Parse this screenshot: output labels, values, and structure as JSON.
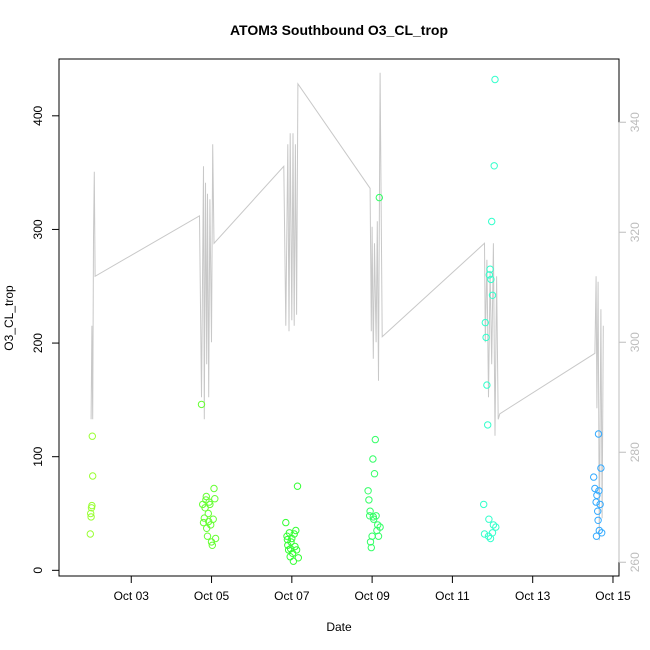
{
  "chart_data": {
    "type": "scatter",
    "title": "ATOM3 Southbound O3_CL_trop",
    "xlabel": "Date",
    "ylabel": "O3_CL_trop",
    "xlim": [
      1.2,
      15.15
    ],
    "ylim": [
      -5,
      450
    ],
    "x_ticks": [
      {
        "value": 3,
        "label": "Oct 03"
      },
      {
        "value": 5,
        "label": "Oct 05"
      },
      {
        "value": 7,
        "label": "Oct 07"
      },
      {
        "value": 9,
        "label": "Oct 09"
      },
      {
        "value": 11,
        "label": "Oct 11"
      },
      {
        "value": 13,
        "label": "Oct 13"
      },
      {
        "value": 15,
        "label": "Oct 15"
      }
    ],
    "y_ticks": [
      0,
      100,
      200,
      300,
      400
    ],
    "secondary_axis": {
      "ylim": [
        257.5,
        351.5
      ],
      "ticks": [
        260,
        280,
        300,
        320,
        340
      ],
      "color": "#bdbdbd"
    },
    "background_line_color": "#c8c8c8",
    "background_line": [
      [
        2.0,
        286
      ],
      [
        2.02,
        303
      ],
      [
        2.04,
        286
      ],
      [
        2.06,
        319
      ],
      [
        2.08,
        331
      ],
      [
        2.1,
        312
      ],
      [
        4.7,
        323
      ],
      [
        4.75,
        290
      ],
      [
        4.8,
        332
      ],
      [
        4.82,
        286
      ],
      [
        4.85,
        329
      ],
      [
        4.88,
        296
      ],
      [
        4.9,
        327
      ],
      [
        4.93,
        290
      ],
      [
        4.96,
        326
      ],
      [
        5.0,
        300
      ],
      [
        5.03,
        336
      ],
      [
        5.06,
        318
      ],
      [
        6.8,
        332
      ],
      [
        6.85,
        303
      ],
      [
        6.9,
        336
      ],
      [
        6.93,
        302
      ],
      [
        6.96,
        338
      ],
      [
        7.0,
        304
      ],
      [
        7.03,
        338
      ],
      [
        7.06,
        303
      ],
      [
        7.09,
        336
      ],
      [
        7.12,
        305
      ],
      [
        7.15,
        347
      ],
      [
        8.95,
        328
      ],
      [
        8.98,
        302
      ],
      [
        9.0,
        321
      ],
      [
        9.03,
        297
      ],
      [
        9.06,
        318
      ],
      [
        9.1,
        300
      ],
      [
        9.13,
        322
      ],
      [
        9.16,
        293
      ],
      [
        9.2,
        349
      ],
      [
        9.25,
        301
      ],
      [
        11.8,
        318
      ],
      [
        11.82,
        300
      ],
      [
        11.86,
        315
      ],
      [
        11.9,
        290
      ],
      [
        11.94,
        313
      ],
      [
        11.98,
        296
      ],
      [
        12.02,
        318
      ],
      [
        12.06,
        283
      ],
      [
        12.1,
        312
      ],
      [
        12.14,
        286
      ],
      [
        12.18,
        287
      ],
      [
        14.55,
        298
      ],
      [
        14.58,
        312
      ],
      [
        14.6,
        288
      ],
      [
        14.63,
        311
      ],
      [
        14.66,
        264
      ],
      [
        14.7,
        306
      ],
      [
        14.73,
        268
      ],
      [
        14.76,
        303
      ]
    ],
    "series": [
      {
        "name": "",
        "color": "#99ff33",
        "points": [
          [
            1.98,
            32
          ],
          [
            1.99,
            50
          ],
          [
            2.0,
            47
          ],
          [
            2.01,
            55
          ],
          [
            2.02,
            57
          ],
          [
            2.03,
            118
          ],
          [
            2.04,
            83
          ]
        ]
      },
      {
        "name": "",
        "color": "#66ff33",
        "points": [
          [
            4.75,
            146
          ],
          [
            4.78,
            58
          ],
          [
            4.8,
            42
          ],
          [
            4.82,
            46
          ],
          [
            4.84,
            55
          ],
          [
            4.86,
            62
          ],
          [
            4.88,
            37
          ],
          [
            4.9,
            30
          ],
          [
            4.92,
            50
          ],
          [
            4.94,
            60
          ],
          [
            4.96,
            58
          ],
          [
            4.98,
            40
          ],
          [
            5.0,
            25
          ],
          [
            5.02,
            22
          ],
          [
            5.04,
            45
          ],
          [
            5.06,
            72
          ],
          [
            5.08,
            63
          ],
          [
            5.1,
            28
          ],
          [
            4.87,
            65
          ],
          [
            4.93,
            43
          ]
        ]
      },
      {
        "name": "",
        "color": "#33ff33",
        "points": [
          [
            6.85,
            42
          ],
          [
            6.88,
            30
          ],
          [
            6.9,
            22
          ],
          [
            6.92,
            18
          ],
          [
            6.94,
            33
          ],
          [
            6.96,
            12
          ],
          [
            6.98,
            25
          ],
          [
            7.0,
            28
          ],
          [
            7.02,
            15
          ],
          [
            7.04,
            8
          ],
          [
            7.06,
            32
          ],
          [
            7.08,
            21
          ],
          [
            7.1,
            35
          ],
          [
            7.12,
            18
          ],
          [
            7.14,
            74
          ],
          [
            7.16,
            11
          ],
          [
            6.89,
            27
          ],
          [
            6.97,
            19
          ]
        ]
      },
      {
        "name": "",
        "color": "#33ff66",
        "points": [
          [
            8.9,
            70
          ],
          [
            8.92,
            62
          ],
          [
            8.94,
            48
          ],
          [
            8.96,
            25
          ],
          [
            8.98,
            20
          ],
          [
            9.0,
            30
          ],
          [
            9.02,
            98
          ],
          [
            9.04,
            45
          ],
          [
            9.06,
            85
          ],
          [
            9.08,
            115
          ],
          [
            9.1,
            48
          ],
          [
            9.12,
            35
          ],
          [
            9.14,
            40
          ],
          [
            9.16,
            30
          ],
          [
            9.18,
            328
          ],
          [
            9.2,
            38
          ],
          [
            8.95,
            52
          ],
          [
            9.03,
            47
          ]
        ]
      },
      {
        "name": "",
        "color": "#33ffcc",
        "points": [
          [
            11.78,
            58
          ],
          [
            11.8,
            32
          ],
          [
            11.82,
            218
          ],
          [
            11.84,
            205
          ],
          [
            11.86,
            163
          ],
          [
            11.88,
            128
          ],
          [
            11.9,
            30
          ],
          [
            11.92,
            260
          ],
          [
            11.94,
            265
          ],
          [
            11.96,
            256
          ],
          [
            11.98,
            307
          ],
          [
            12.0,
            242
          ],
          [
            12.02,
            40
          ],
          [
            12.04,
            356
          ],
          [
            12.06,
            432
          ],
          [
            12.08,
            38
          ],
          [
            11.95,
            28
          ],
          [
            12.0,
            33
          ],
          [
            11.91,
            45
          ]
        ]
      },
      {
        "name": "",
        "color": "#33aaff",
        "points": [
          [
            14.52,
            82
          ],
          [
            14.55,
            72
          ],
          [
            14.58,
            60
          ],
          [
            14.6,
            66
          ],
          [
            14.62,
            52
          ],
          [
            14.64,
            120
          ],
          [
            14.66,
            35
          ],
          [
            14.68,
            58
          ],
          [
            14.7,
            90
          ],
          [
            14.72,
            33
          ],
          [
            14.59,
            30
          ],
          [
            14.63,
            44
          ],
          [
            14.65,
            70
          ]
        ]
      }
    ]
  }
}
